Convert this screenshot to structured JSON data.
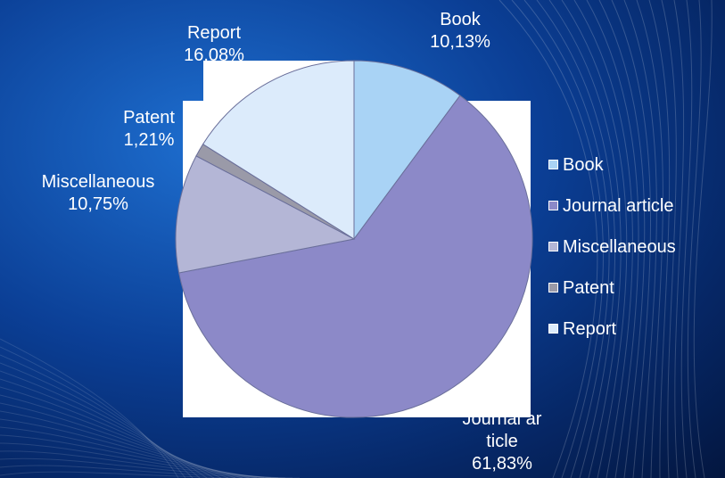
{
  "chart_data": {
    "type": "pie",
    "categories": [
      "Book",
      "Journal article",
      "Miscellaneous",
      "Patent",
      "Report"
    ],
    "values": [
      10.13,
      61.83,
      10.75,
      1.21,
      16.08
    ],
    "value_labels": [
      "10,13%",
      "61,83%",
      "10,75%",
      "1,21%",
      "16,08%"
    ],
    "colors": [
      "#a9d3f5",
      "#8c89c8",
      "#b4b6d6",
      "#9a9aa8",
      "#dcebfb"
    ],
    "legend": "right"
  }
}
